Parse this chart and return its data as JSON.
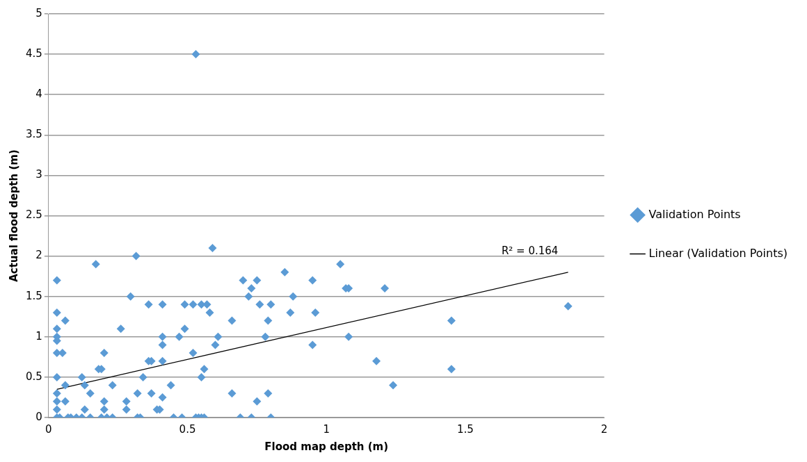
{
  "chart_data": {
    "type": "scatter",
    "xlabel": "Flood map depth (m)",
    "ylabel": "Actual flood depth (m)",
    "xlim": [
      0,
      2
    ],
    "xticks": [
      0,
      0.5,
      1,
      1.5,
      2
    ],
    "ylim": [
      0,
      5
    ],
    "yticks": [
      0,
      0.5,
      1,
      1.5,
      2,
      2.5,
      3,
      3.5,
      4,
      4.5,
      5
    ],
    "grid": "y",
    "legend": "right",
    "series": [
      {
        "name": "Validation Points",
        "color": "#5b9bd5",
        "type": "scatter",
        "marker": "diamond",
        "x": [
          0.53,
          0.17,
          0.315,
          0.59,
          1.05,
          0.85,
          0.03,
          0.7,
          0.75,
          0.95,
          0.73,
          1.07,
          1.08,
          1.21,
          0.72,
          0.295,
          0.88,
          0.03,
          0.03,
          0.06,
          0.36,
          0.41,
          0.49,
          0.52,
          0.55,
          0.57,
          0.58,
          0.76,
          0.8,
          0.26,
          0.49,
          0.66,
          0.79,
          0.87,
          0.96,
          1.45,
          1.87,
          0.03,
          0.03,
          0.41,
          0.47,
          0.61,
          0.78,
          1.08,
          0.41,
          0.6,
          0.95,
          0.03,
          0.05,
          0.2,
          0.52,
          0.36,
          0.37,
          0.41,
          1.18,
          0.18,
          0.19,
          0.56,
          1.45,
          0.03,
          0.12,
          0.34,
          0.55,
          0.06,
          0.13,
          0.23,
          0.44,
          1.24,
          0.15,
          0.32,
          0.37,
          0.66,
          0.79,
          0.03,
          0.03,
          0.06,
          0.2,
          0.28,
          0.41,
          0.75,
          0.03,
          0.13,
          0.2,
          0.28,
          0.39,
          0.4,
          0.03,
          0.04,
          0.07,
          0.08,
          0.1,
          0.12,
          0.15,
          0.19,
          0.21,
          0.23,
          0.32,
          0.33,
          0.45,
          0.48,
          0.53,
          0.54,
          0.55,
          0.56,
          0.69,
          0.73,
          0.8
        ],
        "values": [
          4.5,
          1.9,
          2.0,
          2.1,
          1.9,
          1.8,
          1.7,
          1.7,
          1.7,
          1.7,
          1.6,
          1.6,
          1.6,
          1.6,
          1.5,
          1.5,
          1.5,
          1.3,
          1.1,
          1.2,
          1.4,
          1.4,
          1.4,
          1.4,
          1.4,
          1.4,
          1.3,
          1.4,
          1.4,
          1.1,
          1.1,
          1.2,
          1.2,
          1.3,
          1.3,
          1.2,
          1.38,
          1.0,
          0.95,
          1.0,
          1.0,
          1.0,
          1.0,
          1.0,
          0.9,
          0.9,
          0.9,
          0.8,
          0.8,
          0.8,
          0.8,
          0.7,
          0.7,
          0.7,
          0.7,
          0.6,
          0.6,
          0.6,
          0.6,
          0.5,
          0.5,
          0.5,
          0.5,
          0.4,
          0.4,
          0.4,
          0.4,
          0.4,
          0.3,
          0.3,
          0.3,
          0.3,
          0.3,
          0.3,
          0.2,
          0.2,
          0.2,
          0.2,
          0.25,
          0.2,
          0.1,
          0.1,
          0.1,
          0.1,
          0.1,
          0.1,
          0,
          0,
          0,
          0,
          0,
          0,
          0,
          0,
          0,
          0,
          0,
          0,
          0,
          0,
          0,
          0,
          0,
          0,
          0,
          0,
          0
        ]
      },
      {
        "name": "Linear (Validation Points)",
        "color": "#000000",
        "type": "line",
        "marker": "none",
        "x": [
          0.03,
          1.87
        ],
        "values": [
          0.35,
          1.8
        ]
      }
    ],
    "annotations": [
      "R² = 0.164"
    ]
  }
}
